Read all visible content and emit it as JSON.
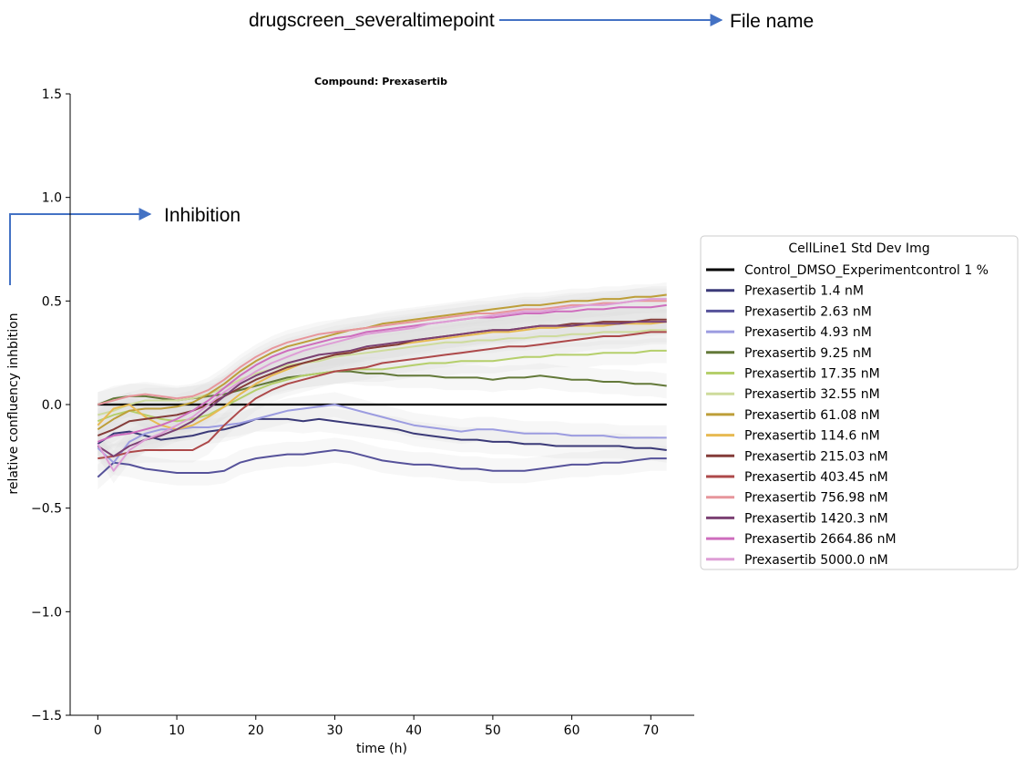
{
  "annotations": {
    "file_name_value": "drugscreen_severaltimepoint",
    "file_name_label": "File name",
    "inhibition_label": "Inhibition"
  },
  "colors": {
    "annotation_arrow": "#4472c4",
    "std_band": "#d9d9d9"
  },
  "chart_data": {
    "type": "line",
    "title": "Compound: Prexasertib",
    "xlabel": "time (h)",
    "ylabel": "relative confluency inhbition",
    "xlim": [
      -3.5,
      75.5
    ],
    "ylim": [
      -1.5,
      1.5
    ],
    "xticks": [
      0,
      10,
      20,
      30,
      40,
      50,
      60,
      70
    ],
    "yticks": [
      -1.5,
      -1.0,
      -0.5,
      0.0,
      0.5,
      1.0,
      1.5
    ],
    "ytick_labels": [
      "−1.5",
      "−1.0",
      "−0.5",
      "0.0",
      "0.5",
      "1.0",
      "1.5"
    ],
    "grid": false,
    "legend_title": "CellLine1  Std Dev Img",
    "legend_position": "right",
    "x": [
      0,
      2,
      4,
      6,
      8,
      10,
      12,
      14,
      16,
      18,
      20,
      22,
      24,
      26,
      28,
      30,
      32,
      34,
      36,
      38,
      40,
      42,
      44,
      46,
      48,
      50,
      52,
      54,
      56,
      58,
      60,
      62,
      64,
      66,
      68,
      70,
      72
    ],
    "series": [
      {
        "name": "Control_DMSO_Experimentcontrol 1 %",
        "color": "#000000",
        "values": [
          0,
          0,
          0,
          0,
          0,
          0,
          0,
          0,
          0,
          0,
          0,
          0,
          0,
          0,
          0,
          0,
          0,
          0,
          0,
          0,
          0,
          0,
          0,
          0,
          0,
          0,
          0,
          0,
          0,
          0,
          0,
          0,
          0,
          0,
          0,
          0,
          0
        ]
      },
      {
        "name": "Prexasertib 1.4 nM",
        "color": "#3b3a78",
        "values": [
          -0.19,
          -0.14,
          -0.13,
          -0.15,
          -0.17,
          -0.16,
          -0.15,
          -0.13,
          -0.12,
          -0.1,
          -0.07,
          -0.07,
          -0.07,
          -0.08,
          -0.07,
          -0.08,
          -0.09,
          -0.1,
          -0.11,
          -0.12,
          -0.14,
          -0.15,
          -0.16,
          -0.17,
          -0.17,
          -0.18,
          -0.18,
          -0.19,
          -0.19,
          -0.2,
          -0.2,
          -0.2,
          -0.2,
          -0.2,
          -0.21,
          -0.21,
          -0.22
        ]
      },
      {
        "name": "Prexasertib 2.63 nM",
        "color": "#56529a",
        "values": [
          -0.35,
          -0.28,
          -0.29,
          -0.31,
          -0.32,
          -0.33,
          -0.33,
          -0.33,
          -0.32,
          -0.28,
          -0.26,
          -0.25,
          -0.24,
          -0.24,
          -0.23,
          -0.22,
          -0.23,
          -0.25,
          -0.27,
          -0.28,
          -0.29,
          -0.29,
          -0.3,
          -0.31,
          -0.31,
          -0.32,
          -0.32,
          -0.32,
          -0.31,
          -0.3,
          -0.29,
          -0.29,
          -0.28,
          -0.28,
          -0.27,
          -0.26,
          -0.26
        ]
      },
      {
        "name": "Prexasertib 4.93 nM",
        "color": "#9c9ce0",
        "values": [
          -0.21,
          -0.28,
          -0.18,
          -0.14,
          -0.12,
          -0.12,
          -0.11,
          -0.11,
          -0.1,
          -0.09,
          -0.07,
          -0.05,
          -0.03,
          -0.02,
          -0.01,
          0,
          -0.02,
          -0.04,
          -0.06,
          -0.08,
          -0.1,
          -0.11,
          -0.12,
          -0.13,
          -0.12,
          -0.12,
          -0.13,
          -0.14,
          -0.14,
          -0.14,
          -0.15,
          -0.15,
          -0.15,
          -0.16,
          -0.16,
          -0.16,
          -0.16
        ]
      },
      {
        "name": "Prexasertib 9.25 nM",
        "color": "#637939",
        "values": [
          0,
          0.03,
          0.04,
          0.04,
          0.03,
          0.02,
          0.03,
          0.04,
          0.05,
          0.07,
          0.09,
          0.11,
          0.13,
          0.14,
          0.15,
          0.16,
          0.16,
          0.15,
          0.15,
          0.14,
          0.14,
          0.14,
          0.13,
          0.13,
          0.13,
          0.12,
          0.13,
          0.13,
          0.14,
          0.13,
          0.12,
          0.12,
          0.11,
          0.11,
          0.1,
          0.1,
          0.09
        ]
      },
      {
        "name": "Prexasertib 17.35 nM",
        "color": "#b5cf6b",
        "values": [
          -0.08,
          -0.05,
          -0.03,
          -0.05,
          -0.07,
          -0.08,
          -0.07,
          -0.05,
          -0.01,
          0.03,
          0.07,
          0.1,
          0.12,
          0.14,
          0.15,
          0.16,
          0.17,
          0.17,
          0.17,
          0.18,
          0.19,
          0.2,
          0.2,
          0.21,
          0.21,
          0.21,
          0.22,
          0.23,
          0.23,
          0.24,
          0.24,
          0.24,
          0.25,
          0.25,
          0.25,
          0.26,
          0.26
        ]
      },
      {
        "name": "Prexasertib 32.55 nM",
        "color": "#cedb9c",
        "values": [
          -0.05,
          -0.03,
          0,
          0.02,
          0.02,
          0.02,
          0.03,
          0.05,
          0.08,
          0.12,
          0.15,
          0.17,
          0.19,
          0.2,
          0.21,
          0.23,
          0.24,
          0.25,
          0.26,
          0.27,
          0.28,
          0.29,
          0.3,
          0.3,
          0.31,
          0.31,
          0.32,
          0.32,
          0.33,
          0.33,
          0.34,
          0.34,
          0.35,
          0.35,
          0.35,
          0.36,
          0.36
        ]
      },
      {
        "name": "Prexasertib 61.08 nM",
        "color": "#bd9e39",
        "values": [
          -0.12,
          -0.07,
          -0.03,
          -0.02,
          -0.02,
          -0.01,
          0.01,
          0.05,
          0.1,
          0.16,
          0.21,
          0.25,
          0.28,
          0.3,
          0.32,
          0.34,
          0.36,
          0.37,
          0.39,
          0.4,
          0.41,
          0.42,
          0.43,
          0.44,
          0.45,
          0.46,
          0.47,
          0.48,
          0.48,
          0.49,
          0.5,
          0.5,
          0.51,
          0.51,
          0.52,
          0.52,
          0.53
        ]
      },
      {
        "name": "Prexasertib 114.6 nM",
        "color": "#e7ba52",
        "values": [
          -0.1,
          -0.02,
          0,
          -0.06,
          -0.1,
          -0.12,
          -0.1,
          -0.06,
          -0.01,
          0.05,
          0.1,
          0.14,
          0.17,
          0.2,
          0.22,
          0.24,
          0.26,
          0.27,
          0.28,
          0.29,
          0.3,
          0.31,
          0.32,
          0.33,
          0.34,
          0.35,
          0.35,
          0.36,
          0.37,
          0.37,
          0.38,
          0.38,
          0.38,
          0.39,
          0.39,
          0.39,
          0.4
        ]
      },
      {
        "name": "Prexasertib 215.03 nM",
        "color": "#843c39",
        "values": [
          -0.15,
          -0.12,
          -0.08,
          -0.07,
          -0.06,
          -0.05,
          -0.03,
          0,
          0.04,
          0.08,
          0.12,
          0.15,
          0.18,
          0.2,
          0.22,
          0.24,
          0.25,
          0.27,
          0.28,
          0.29,
          0.31,
          0.32,
          0.33,
          0.34,
          0.35,
          0.36,
          0.36,
          0.37,
          0.38,
          0.38,
          0.39,
          0.39,
          0.4,
          0.4,
          0.4,
          0.41,
          0.41
        ]
      },
      {
        "name": "Prexasertib 403.45 nM",
        "color": "#ad494a",
        "values": [
          -0.26,
          -0.25,
          -0.23,
          -0.22,
          -0.22,
          -0.22,
          -0.22,
          -0.18,
          -0.1,
          -0.03,
          0.03,
          0.07,
          0.1,
          0.12,
          0.14,
          0.16,
          0.17,
          0.18,
          0.2,
          0.21,
          0.22,
          0.23,
          0.24,
          0.25,
          0.26,
          0.27,
          0.28,
          0.28,
          0.29,
          0.3,
          0.31,
          0.32,
          0.33,
          0.33,
          0.34,
          0.35,
          0.35
        ]
      },
      {
        "name": "Prexasertib 756.98 nM",
        "color": "#e7969c",
        "values": [
          0,
          0.02,
          0.04,
          0.05,
          0.04,
          0.03,
          0.04,
          0.07,
          0.12,
          0.18,
          0.23,
          0.27,
          0.3,
          0.32,
          0.34,
          0.35,
          0.36,
          0.37,
          0.38,
          0.39,
          0.4,
          0.41,
          0.42,
          0.43,
          0.44,
          0.44,
          0.45,
          0.46,
          0.46,
          0.47,
          0.48,
          0.48,
          0.49,
          0.49,
          0.5,
          0.5,
          0.5
        ]
      },
      {
        "name": "Prexasertib 1420.3 nM",
        "color": "#7b4173",
        "values": [
          -0.2,
          -0.25,
          -0.2,
          -0.17,
          -0.15,
          -0.12,
          -0.08,
          -0.02,
          0.04,
          0.1,
          0.14,
          0.17,
          0.2,
          0.22,
          0.24,
          0.25,
          0.26,
          0.28,
          0.29,
          0.3,
          0.31,
          0.32,
          0.33,
          0.34,
          0.35,
          0.36,
          0.36,
          0.37,
          0.38,
          0.38,
          0.38,
          0.39,
          0.39,
          0.39,
          0.4,
          0.4,
          0.4
        ]
      },
      {
        "name": "Prexasertib 2664.86 nM",
        "color": "#ce6dbd",
        "values": [
          -0.18,
          -0.15,
          -0.14,
          -0.12,
          -0.1,
          -0.07,
          -0.03,
          0.02,
          0.08,
          0.14,
          0.19,
          0.23,
          0.26,
          0.28,
          0.3,
          0.32,
          0.33,
          0.35,
          0.36,
          0.37,
          0.38,
          0.39,
          0.4,
          0.41,
          0.42,
          0.42,
          0.43,
          0.44,
          0.44,
          0.45,
          0.45,
          0.46,
          0.46,
          0.47,
          0.47,
          0.47,
          0.48
        ]
      },
      {
        "name": "Prexasertib 5000.0 nM",
        "color": "#de9ed6",
        "values": [
          -0.19,
          -0.32,
          -0.22,
          -0.17,
          -0.14,
          -0.1,
          -0.06,
          0,
          0.06,
          0.11,
          0.16,
          0.2,
          0.23,
          0.26,
          0.28,
          0.3,
          0.32,
          0.34,
          0.35,
          0.36,
          0.37,
          0.39,
          0.4,
          0.41,
          0.42,
          0.43,
          0.44,
          0.45,
          0.45,
          0.46,
          0.47,
          0.48,
          0.48,
          0.49,
          0.5,
          0.51,
          0.51
        ]
      }
    ]
  }
}
